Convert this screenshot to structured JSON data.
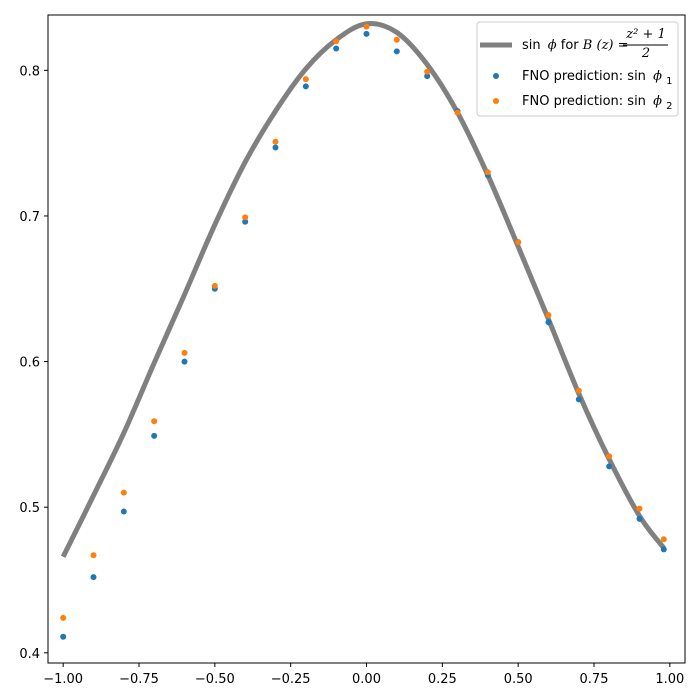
{
  "chart_data": {
    "type": "line",
    "title": "",
    "xlabel": "",
    "ylabel": "",
    "xlim": [
      -1.05,
      1.05
    ],
    "ylim": [
      0.393,
      0.838
    ],
    "x_ticks": [
      -1.0,
      -0.75,
      -0.5,
      -0.25,
      0.0,
      0.25,
      0.5,
      0.75,
      1.0
    ],
    "x_tick_labels": [
      "−1.00",
      "−0.75",
      "−0.50",
      "−0.25",
      "0.00",
      "0.25",
      "0.50",
      "0.75",
      "1.00"
    ],
    "y_ticks": [
      0.4,
      0.5,
      0.6,
      0.7,
      0.8
    ],
    "y_tick_labels": [
      "0.4",
      "0.5",
      "0.6",
      "0.7",
      "0.8"
    ],
    "grid": false,
    "legend_position": "top-right",
    "legend": {
      "line_label_prefix": "sin",
      "line_label_phi": "ϕ",
      "line_label_for": " for ",
      "line_label_b": "B",
      "line_label_z": "(z) = ",
      "line_frac_num": "z² + 1",
      "line_frac_den": "2",
      "series1_text": "FNO prediction: sin",
      "series1_sym": "ϕ",
      "series1_sub": "1",
      "series2_text": "FNO prediction: sin",
      "series2_sym": "ϕ",
      "series2_sub": "2"
    },
    "series": [
      {
        "name": "sin ϕ for B(z) = (z² + 1)/2",
        "kind": "line",
        "color": "#808080",
        "x": [
          -1.0,
          -0.9,
          -0.8,
          -0.7,
          -0.6,
          -0.5,
          -0.4,
          -0.3,
          -0.2,
          -0.1,
          0.0,
          0.1,
          0.2,
          0.3,
          0.4,
          0.5,
          0.6,
          0.7,
          0.8,
          0.9,
          0.98
        ],
        "y": [
          0.466,
          0.508,
          0.551,
          0.599,
          0.646,
          0.694,
          0.737,
          0.772,
          0.801,
          0.821,
          0.832,
          0.826,
          0.804,
          0.771,
          0.728,
          0.679,
          0.629,
          0.578,
          0.533,
          0.494,
          0.472
        ]
      },
      {
        "name": "FNO prediction: sin ϕ₁",
        "kind": "scatter",
        "color": "#1f77b4",
        "x": [
          -1.0,
          -0.9,
          -0.8,
          -0.7,
          -0.6,
          -0.5,
          -0.4,
          -0.3,
          -0.2,
          -0.1,
          0.0,
          0.1,
          0.2,
          0.3,
          0.4,
          0.5,
          0.6,
          0.7,
          0.8,
          0.9,
          0.98
        ],
        "y": [
          0.411,
          0.452,
          0.497,
          0.549,
          0.6,
          0.65,
          0.696,
          0.747,
          0.789,
          0.815,
          0.825,
          0.813,
          0.796,
          0.772,
          0.728,
          0.682,
          0.627,
          0.574,
          0.528,
          0.492,
          0.471
        ]
      },
      {
        "name": "FNO prediction: sin ϕ₂",
        "kind": "scatter",
        "color": "#ff7f0e",
        "x": [
          -1.0,
          -0.9,
          -0.8,
          -0.7,
          -0.6,
          -0.5,
          -0.4,
          -0.3,
          -0.2,
          -0.1,
          0.0,
          0.1,
          0.2,
          0.3,
          0.4,
          0.5,
          0.6,
          0.7,
          0.8,
          0.9,
          0.98
        ],
        "y": [
          0.424,
          0.467,
          0.51,
          0.559,
          0.606,
          0.652,
          0.699,
          0.751,
          0.794,
          0.82,
          0.83,
          0.821,
          0.799,
          0.771,
          0.73,
          0.682,
          0.632,
          0.58,
          0.535,
          0.499,
          0.478
        ]
      }
    ]
  }
}
